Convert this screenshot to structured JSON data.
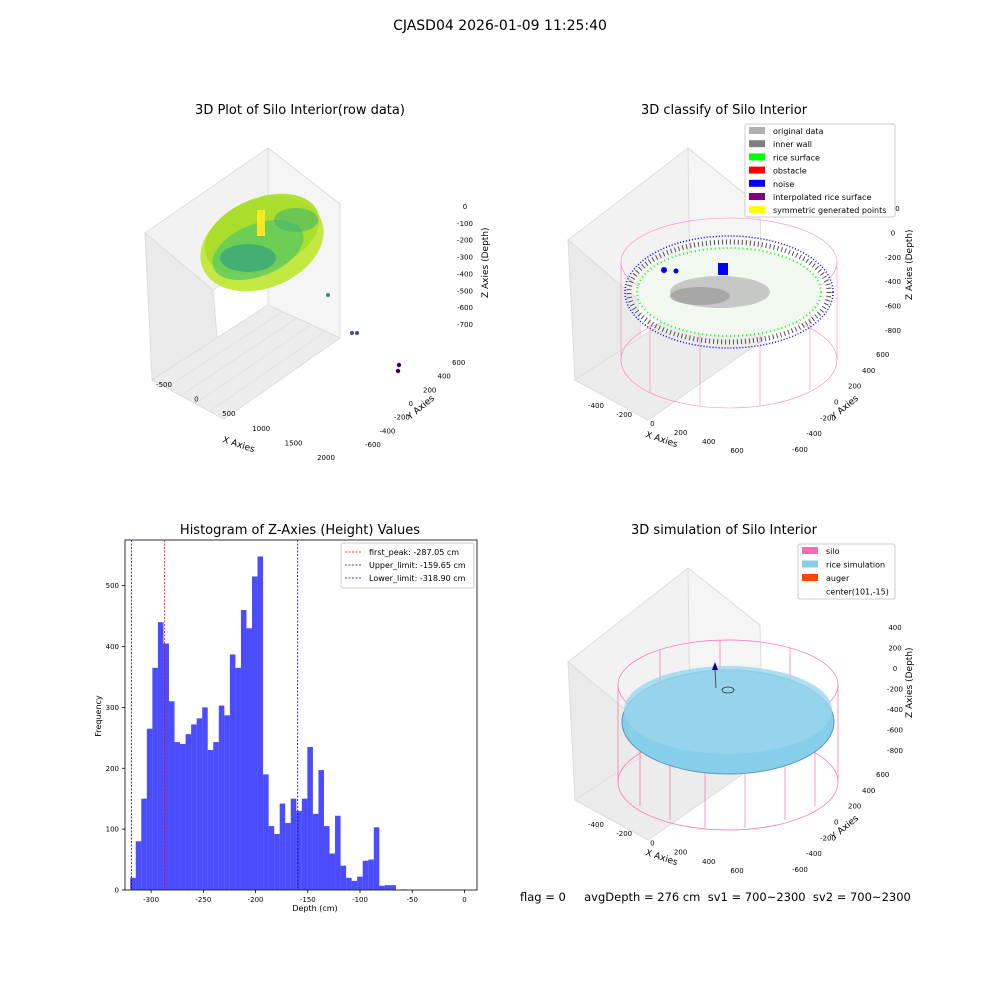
{
  "suptitle": "CJASD04 2026-01-09 11:25:40",
  "colors": {
    "silo": "#ff69b4",
    "rice": "#87ceeb",
    "auger": "#ff4500",
    "hist": "#0000ff",
    "first_peak": "#ff0000",
    "limits": "#0000aa",
    "noise": "#0000ff",
    "rice_surface": "#00ff00",
    "inner_wall": "#808080",
    "original": "#b0b0b0"
  },
  "chart_data": [
    {
      "type": "scatter",
      "title": "3D Plot of Silo Interior(row data)",
      "xlabel": "X Axies",
      "ylabel": "Y Axies",
      "zlabel": "Z Axies (Depth)",
      "xticks": [
        "-500",
        "0",
        "500",
        "1000",
        "1500",
        "2000"
      ],
      "yticks": [
        "-600",
        "-400",
        "-200",
        "0",
        "200",
        "400",
        "600"
      ],
      "zticks": [
        "0",
        "-100",
        "-200",
        "-300",
        "-400",
        "-500",
        "-600",
        "-700"
      ],
      "colormap": "viridis (by depth)"
    },
    {
      "type": "scatter",
      "title": "3D classify of Silo Interior",
      "xlabel": "X Axies",
      "ylabel": "Y Axies",
      "zlabel": "Z Axies (Depth)",
      "xticks": [
        "-400",
        "-200",
        "0",
        "200",
        "400",
        "600"
      ],
      "yticks": [
        "-600",
        "-400",
        "-200",
        "0",
        "200",
        "400",
        "600"
      ],
      "zticks": [
        "200",
        "0",
        "-200",
        "-400",
        "-600",
        "-800"
      ],
      "legend_position": "upper right",
      "legend": [
        {
          "label": "original data",
          "color": "#b0b0b0"
        },
        {
          "label": "inner wall",
          "color": "#808080"
        },
        {
          "label": "rice surface",
          "color": "#00ff00"
        },
        {
          "label": "obstacle",
          "color": "#ff0000"
        },
        {
          "label": "noise",
          "color": "#0000ff"
        },
        {
          "label": "interpolated rice surface",
          "color": "#800080"
        },
        {
          "label": "symmetric generated points",
          "color": "#ffff00"
        }
      ]
    },
    {
      "type": "bar",
      "title": "Histogram of Z-Axies (Height) Values",
      "xlabel": "Depth (cm)",
      "ylabel": "Frequency",
      "xlim": [
        -325,
        12
      ],
      "ylim": [
        0,
        575
      ],
      "xticks": [
        -300,
        -250,
        -200,
        -150,
        -100,
        -50,
        0
      ],
      "yticks": [
        0,
        100,
        200,
        300,
        400,
        500
      ],
      "bin_start": -320,
      "bin_width": 5.3,
      "values": [
        20,
        80,
        150,
        265,
        365,
        440,
        405,
        310,
        243,
        240,
        256,
        272,
        282,
        300,
        230,
        243,
        303,
        287,
        387,
        365,
        460,
        430,
        515,
        548,
        190,
        105,
        92,
        142,
        110,
        150,
        130,
        150,
        235,
        125,
        197,
        105,
        60,
        122,
        40,
        20,
        15,
        22,
        48,
        50,
        103,
        7,
        8,
        8,
        0,
        1,
        0
      ],
      "legend_position": "upper right",
      "vlines": [
        {
          "label": "first_peak: -287.05 cm",
          "x": -287.05,
          "color": "#ff0000"
        },
        {
          "label": "Upper_limit: -159.65 cm",
          "x": -159.65,
          "color": "#0000aa"
        },
        {
          "label": "Lower_limit: -318.90 cm",
          "x": -318.9,
          "color": "#0000aa"
        }
      ]
    },
    {
      "type": "scatter",
      "title": "3D simulation of Silo Interior",
      "xlabel": "X Axies",
      "ylabel": "Y Axies",
      "zlabel": "Z Axies (Depth)",
      "xticks": [
        "-400",
        "-200",
        "0",
        "200",
        "400",
        "600"
      ],
      "yticks": [
        "-600",
        "-400",
        "-200",
        "0",
        "200",
        "400",
        "600"
      ],
      "zticks": [
        "400",
        "200",
        "0",
        "-200",
        "-400",
        "-600",
        "-800"
      ],
      "legend_position": "upper right",
      "legend": [
        {
          "label": "silo",
          "color": "#ff69b4"
        },
        {
          "label": "rice simulation",
          "color": "#87ceeb"
        },
        {
          "label": "auger",
          "color": "#ff4500"
        },
        {
          "label": "center(101,-15)",
          "color": ""
        }
      ]
    }
  ],
  "footer": "flag = 0     avgDepth = 276 cm  sv1 = 700~2300  sv2 = 700~2300"
}
